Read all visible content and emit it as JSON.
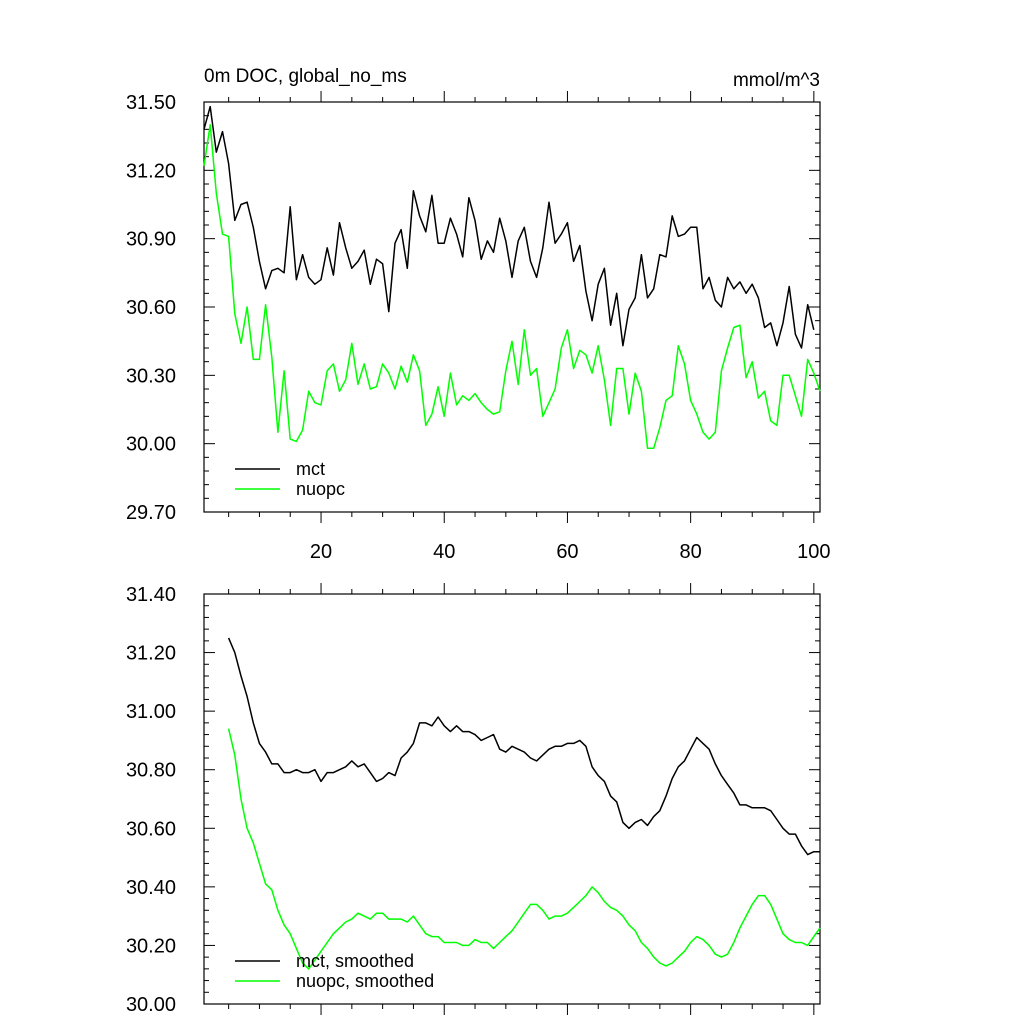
{
  "chart_data": [
    {
      "type": "line",
      "title": "0m DOC, global_no_ms",
      "units": "mmol/m^3",
      "xlabel": "",
      "ylabel": "",
      "xlim": [
        1,
        101
      ],
      "ylim": [
        29.7,
        31.5
      ],
      "xticks": [
        20,
        40,
        60,
        80,
        100
      ],
      "xtick_labels": [
        "20",
        "40",
        "60",
        "80",
        "100"
      ],
      "yticks": [
        29.7,
        30.0,
        30.3,
        30.6,
        30.9,
        31.2,
        31.5
      ],
      "ytick_labels": [
        "29.70",
        "30.00",
        "30.30",
        "30.60",
        "30.90",
        "31.20",
        "31.50"
      ],
      "legend_position": "bottom-left",
      "grid": false,
      "x_start": 1,
      "series": [
        {
          "name": "mct",
          "color": "#000000",
          "values": [
            31.38,
            31.48,
            31.28,
            31.37,
            31.23,
            30.98,
            31.05,
            31.06,
            30.95,
            30.8,
            30.68,
            30.76,
            30.77,
            30.75,
            31.04,
            30.72,
            30.83,
            30.73,
            30.7,
            30.72,
            30.86,
            30.74,
            30.97,
            30.86,
            30.77,
            30.8,
            30.85,
            30.7,
            30.81,
            30.79,
            30.58,
            30.88,
            30.94,
            30.77,
            31.11,
            31.0,
            30.93,
            31.09,
            30.88,
            30.88,
            30.99,
            30.92,
            30.82,
            31.08,
            30.98,
            30.81,
            30.89,
            30.84,
            30.99,
            30.89,
            30.73,
            30.89,
            30.95,
            30.8,
            30.73,
            30.86,
            31.06,
            30.88,
            30.92,
            30.97,
            30.8,
            30.87,
            30.67,
            30.54,
            30.7,
            30.77,
            30.52,
            30.66,
            30.43,
            30.59,
            30.64,
            30.83,
            30.64,
            30.68,
            30.83,
            30.82,
            31.0,
            30.91,
            30.92,
            30.95,
            30.95,
            30.68,
            30.73,
            30.63,
            30.6,
            30.73,
            30.68,
            30.71,
            30.66,
            30.7,
            30.64,
            30.51,
            30.53,
            30.43,
            30.53,
            30.69,
            30.48,
            30.42,
            30.61,
            30.5
          ]
        },
        {
          "name": "nuopc",
          "color": "#00ff00",
          "values": [
            31.22,
            31.4,
            31.1,
            30.92,
            30.91,
            30.57,
            30.44,
            30.6,
            30.37,
            30.37,
            30.61,
            30.38,
            30.05,
            30.32,
            30.02,
            30.01,
            30.06,
            30.23,
            30.18,
            30.17,
            30.32,
            30.35,
            30.23,
            30.28,
            30.44,
            30.26,
            30.35,
            30.24,
            30.25,
            30.35,
            30.31,
            30.24,
            30.34,
            30.27,
            30.39,
            30.32,
            30.08,
            30.13,
            30.25,
            30.12,
            30.31,
            30.17,
            30.21,
            30.19,
            30.22,
            30.18,
            30.15,
            30.13,
            30.14,
            30.32,
            30.45,
            30.26,
            30.5,
            30.3,
            30.33,
            30.12,
            30.18,
            30.24,
            30.42,
            30.5,
            30.33,
            30.41,
            30.39,
            30.31,
            30.43,
            30.28,
            30.08,
            30.33,
            30.33,
            30.13,
            30.31,
            30.23,
            29.98,
            29.98,
            30.07,
            30.19,
            30.21,
            30.43,
            30.35,
            30.19,
            30.13,
            30.05,
            30.02,
            30.05,
            30.32,
            30.42,
            30.51,
            30.52,
            30.29,
            30.36,
            30.2,
            30.23,
            30.1,
            30.08,
            30.3,
            30.3,
            30.21,
            30.12,
            30.37,
            30.31,
            30.23
          ]
        }
      ]
    },
    {
      "type": "line",
      "title": "",
      "xlabel": "",
      "ylabel": "",
      "xlim": [
        1,
        101
      ],
      "ylim": [
        30.0,
        31.4
      ],
      "xticks": [
        20,
        40,
        60,
        80,
        100
      ],
      "xtick_labels": [],
      "yticks": [
        30.0,
        30.2,
        30.4,
        30.6,
        30.8,
        31.0,
        31.2,
        31.4
      ],
      "ytick_labels": [
        "30.00",
        "30.20",
        "30.40",
        "30.60",
        "30.80",
        "31.00",
        "31.20",
        "31.40"
      ],
      "legend_position": "bottom-left",
      "grid": false,
      "x_start": 5,
      "series": [
        {
          "name": "mct, smoothed",
          "color": "#000000",
          "values": [
            31.25,
            31.2,
            31.12,
            31.05,
            30.96,
            30.89,
            30.86,
            30.82,
            30.82,
            30.79,
            30.79,
            30.8,
            30.79,
            30.79,
            30.8,
            30.76,
            30.79,
            30.79,
            30.8,
            30.81,
            30.83,
            30.81,
            30.82,
            30.79,
            30.76,
            30.77,
            30.79,
            30.78,
            30.84,
            30.86,
            30.89,
            30.96,
            30.96,
            30.95,
            30.98,
            30.95,
            30.93,
            30.95,
            30.93,
            30.93,
            30.92,
            30.9,
            30.91,
            30.92,
            30.87,
            30.86,
            30.88,
            30.87,
            30.86,
            30.84,
            30.83,
            30.85,
            30.87,
            30.88,
            30.88,
            30.89,
            30.89,
            30.9,
            30.88,
            30.81,
            30.78,
            30.76,
            30.71,
            30.69,
            30.62,
            30.6,
            30.62,
            30.63,
            30.61,
            30.64,
            30.66,
            30.71,
            30.77,
            30.81,
            30.83,
            30.87,
            30.91,
            30.89,
            30.87,
            30.82,
            30.78,
            30.75,
            30.72,
            30.68,
            30.68,
            30.67,
            30.67,
            30.67,
            30.66,
            30.63,
            30.6,
            30.58,
            30.58,
            30.54,
            30.51,
            30.52,
            30.52
          ]
        },
        {
          "name": "nuopc, smoothed",
          "color": "#00ff00",
          "values": [
            30.94,
            30.85,
            30.7,
            30.6,
            30.55,
            30.48,
            30.41,
            30.39,
            30.32,
            30.27,
            30.24,
            30.19,
            30.14,
            30.12,
            30.15,
            30.18,
            30.21,
            30.24,
            30.26,
            30.28,
            30.29,
            30.31,
            30.3,
            30.29,
            30.31,
            30.31,
            30.29,
            30.29,
            30.29,
            30.28,
            30.3,
            30.27,
            30.24,
            30.23,
            30.23,
            30.21,
            30.21,
            30.21,
            30.2,
            30.2,
            30.22,
            30.21,
            30.21,
            30.19,
            30.21,
            30.23,
            30.25,
            30.28,
            30.31,
            30.34,
            30.34,
            30.32,
            30.29,
            30.3,
            30.3,
            30.31,
            30.33,
            30.35,
            30.37,
            30.4,
            30.38,
            30.35,
            30.33,
            30.32,
            30.3,
            30.27,
            30.25,
            30.21,
            30.19,
            30.16,
            30.14,
            30.13,
            30.14,
            30.16,
            30.18,
            30.21,
            30.23,
            30.22,
            30.2,
            30.17,
            30.16,
            30.17,
            30.21,
            30.26,
            30.3,
            30.34,
            30.37,
            30.37,
            30.34,
            30.29,
            30.24,
            30.22,
            30.21,
            30.21,
            30.2,
            30.23,
            30.26
          ]
        }
      ]
    }
  ]
}
